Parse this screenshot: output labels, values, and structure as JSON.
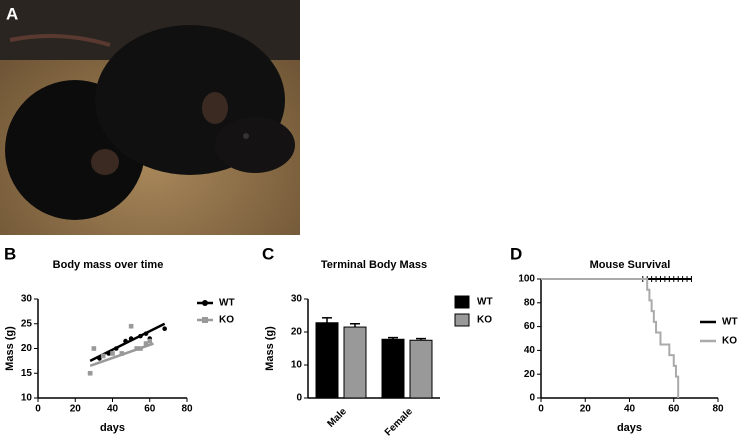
{
  "photo": {
    "panel": "A"
  },
  "chart_data": [
    {
      "type": "scatter",
      "panel": "B",
      "title": "Body mass over time",
      "x_label": "days",
      "y_label": "Mass (g)",
      "xlim": [
        0,
        80
      ],
      "xticks": [
        0,
        20,
        40,
        60,
        80
      ],
      "ylim": [
        10,
        30
      ],
      "yticks": [
        10,
        15,
        20,
        25,
        30
      ],
      "series": [
        {
          "name": "WT",
          "color": "#000000",
          "marker": "circle",
          "x": [
            28,
            33,
            38,
            42,
            47,
            50,
            55,
            58,
            60,
            68
          ],
          "values": [
            15,
            18,
            19,
            20,
            21.5,
            22,
            22.5,
            23,
            22,
            24
          ],
          "fit": {
            "x": [
              28,
              68
            ],
            "values": [
              17.5,
              25
            ]
          }
        },
        {
          "name": "KO",
          "color": "#999999",
          "marker": "square",
          "x": [
            28,
            30,
            35,
            40,
            45,
            50,
            53,
            55,
            58,
            60
          ],
          "values": [
            15,
            20,
            18.5,
            19,
            19,
            24.5,
            20,
            20,
            21,
            21.5
          ],
          "fit": {
            "x": [
              28,
              62
            ],
            "values": [
              16.5,
              21
            ]
          }
        }
      ]
    },
    {
      "type": "bar",
      "panel": "C",
      "title": "Terminal Body Mass",
      "y_label": "Mass (g)",
      "categories": [
        "Male",
        "Female"
      ],
      "ylim": [
        0,
        30
      ],
      "yticks": [
        0,
        10,
        20,
        30
      ],
      "series": [
        {
          "name": "WT",
          "color": "#000000",
          "values": [
            22.8,
            17.8
          ],
          "errors": [
            1.5,
            0.5
          ]
        },
        {
          "name": "KO",
          "color": "#999999",
          "values": [
            21.5,
            17.5
          ],
          "errors": [
            1,
            0.5
          ]
        }
      ]
    },
    {
      "type": "step",
      "panel": "D",
      "title": "Mouse Survival",
      "x_label": "days",
      "xlim": [
        0,
        80
      ],
      "xticks": [
        0,
        20,
        40,
        60,
        80
      ],
      "ylim": [
        0,
        100
      ],
      "yticks": [
        0,
        20,
        40,
        60,
        80,
        100
      ],
      "series": [
        {
          "name": "WT",
          "color": "#000000",
          "x": [
            0,
            68
          ],
          "values": [
            100,
            100
          ],
          "censored": [
            46,
            48,
            50,
            52,
            54,
            56,
            58,
            60,
            62,
            64,
            66,
            68
          ]
        },
        {
          "name": "KO",
          "color": "#aaaaaa",
          "x": [
            0,
            48,
            49,
            50,
            51,
            52,
            54,
            58,
            60,
            61,
            62
          ],
          "values": [
            100,
            91,
            82,
            73,
            64,
            55,
            45,
            36,
            27,
            18,
            0
          ]
        }
      ]
    }
  ]
}
